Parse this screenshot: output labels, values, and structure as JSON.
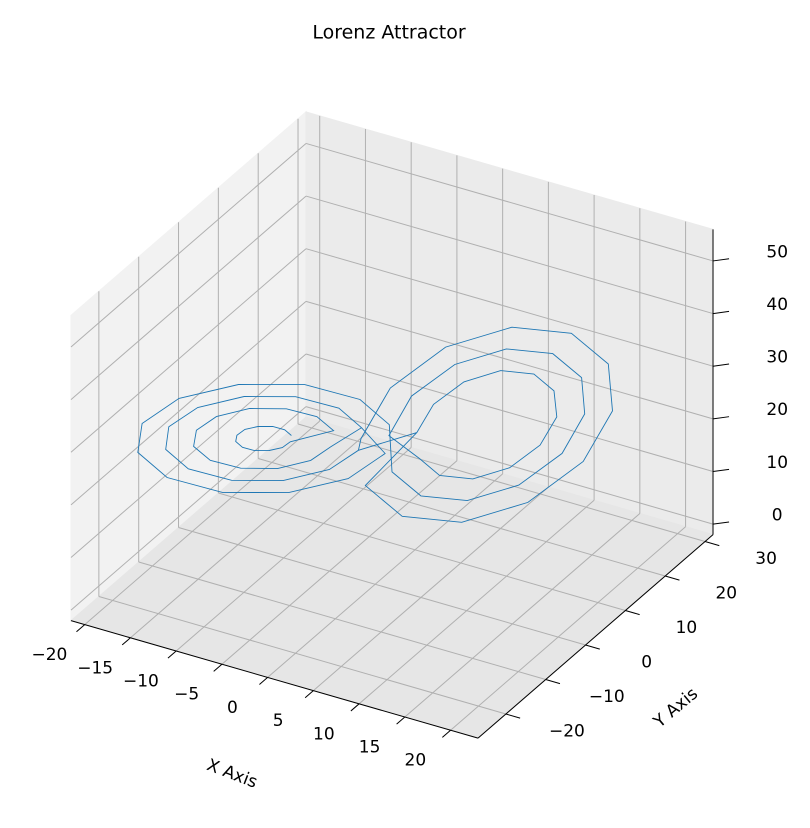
{
  "chart_data": {
    "type": "line3d",
    "title": "Lorenz Attractor",
    "x_label": "X Axis",
    "y_label": "Y Axis",
    "xlim": [
      -21.5,
      23
    ],
    "ylim": [
      -27,
      32
    ],
    "zlim": [
      -2,
      56
    ],
    "xticks": [
      {
        "value": -20,
        "label": "−20"
      },
      {
        "value": -15,
        "label": "−15"
      },
      {
        "value": -10,
        "label": "−10"
      },
      {
        "value": -5,
        "label": "−5"
      },
      0,
      5,
      10,
      15,
      20
    ],
    "yticks": [
      {
        "value": -20,
        "label": "−20"
      },
      {
        "value": -10,
        "label": "−10"
      },
      0,
      10,
      20,
      30
    ],
    "zticks": [
      0,
      10,
      20,
      30,
      40,
      50
    ],
    "grid": true,
    "series": [
      {
        "color": "#1f77b4",
        "x": [
          -6.5,
          -6.8,
          -7.5,
          -8.5,
          -9.5,
          -10.2,
          -10.5,
          -10.2,
          -9.5,
          -8.5,
          -7.5,
          -6.8,
          -3.5,
          -4.2,
          -6,
          -8.5,
          -11,
          -12.8,
          -13.5,
          -12.8,
          -11,
          -8.5,
          -6,
          -4.2,
          -1.5,
          -2.4,
          -5,
          -8.5,
          -12,
          -14.6,
          -15.5,
          -14.6,
          -12,
          -8.5,
          -5,
          -2.4,
          3.5,
          4.2,
          6,
          8.5,
          11,
          12.8,
          13.5,
          12.8,
          11,
          8.5,
          6,
          4.2,
          1.5,
          2.4,
          5,
          8.5,
          12,
          14.6,
          15.5,
          14.6,
          12,
          8.5,
          5,
          2.4,
          0.5,
          -0.7,
          -4,
          -8.5,
          -13,
          -16.3,
          -17.5,
          -16.3,
          -13,
          -8.5,
          -4,
          -0.7,
          -1.5,
          -2.4,
          -5,
          -8.5,
          -12,
          -14.6,
          -15.5,
          -14.6,
          -12,
          -8.5,
          -5,
          -2.4,
          -0.5,
          0.7,
          4,
          8.5,
          13,
          16.3,
          17.5,
          16.3,
          13,
          8.5,
          4,
          0.7,
          3.5,
          4.2,
          6,
          8.5,
          11,
          12.8,
          13.5,
          12.8,
          11,
          8.5,
          6,
          4.2
        ],
        "y": [
          -6.1,
          -7.1,
          -8.5,
          -9.9,
          -10.9,
          -11.3,
          -10.9,
          -9.9,
          -8.5,
          -7.1,
          -6.1,
          -5.7,
          -2.4,
          -5,
          -8.5,
          -12,
          -14.6,
          -15.5,
          -14.6,
          -12,
          -8.5,
          -5,
          -2.4,
          -1.5,
          0,
          -3.6,
          -8.5,
          -13.4,
          -17,
          -18.3,
          -17,
          -13.4,
          -8.5,
          -3.6,
          0,
          1.3,
          2.4,
          5,
          8.5,
          12,
          14.6,
          15.5,
          14.6,
          12,
          8.5,
          5,
          2.4,
          1.5,
          0,
          3.6,
          8.5,
          13.4,
          17,
          18.3,
          17,
          13.4,
          8.5,
          3.6,
          0,
          -1.3,
          2.4,
          -2.2,
          -8.5,
          -14.8,
          -19.4,
          -21.1,
          -19.4,
          -14.8,
          -8.5,
          -2.2,
          2.4,
          4.1,
          0,
          -3.6,
          -8.5,
          -13.4,
          -17,
          -18.3,
          -17,
          -13.4,
          -8.5,
          -3.6,
          0,
          1.3,
          -2.4,
          2.2,
          8.5,
          14.8,
          19.4,
          21.1,
          19.4,
          14.8,
          8.5,
          2.2,
          -2.4,
          -4.1,
          2.4,
          5,
          8.5,
          12,
          14.6,
          15.5,
          14.6,
          12,
          8.5,
          5,
          2.4,
          1.5
        ],
        "z": [
          27,
          28.6,
          29.8,
          30.2,
          29.8,
          28.6,
          27,
          25.4,
          24.2,
          23.8,
          24.2,
          25.4,
          27,
          31,
          33.9,
          35,
          33.9,
          31,
          27,
          23,
          20.1,
          19,
          20.1,
          23,
          27,
          32.6,
          36.7,
          38.2,
          36.7,
          32.6,
          27,
          21.4,
          17.3,
          15.8,
          17.3,
          21.4,
          27,
          31,
          33.9,
          35,
          33.9,
          31,
          27,
          23,
          20.1,
          19,
          20.1,
          23,
          27,
          32.6,
          36.7,
          38.2,
          36.7,
          32.6,
          27,
          21.4,
          17.3,
          15.8,
          17.3,
          21.4,
          27,
          34.2,
          39.5,
          41.4,
          39.5,
          34.2,
          27,
          19.8,
          14.5,
          12.6,
          14.5,
          19.8,
          27,
          32.6,
          36.7,
          38.2,
          36.7,
          32.6,
          27,
          21.4,
          17.3,
          15.8,
          17.3,
          21.4,
          27,
          34.2,
          39.5,
          41.4,
          39.5,
          34.2,
          27,
          19.8,
          14.5,
          12.6,
          14.5,
          19.8,
          27,
          31,
          33.9,
          35,
          33.9,
          31,
          27,
          23,
          20.1,
          19,
          20.1,
          23
        ]
      }
    ]
  }
}
